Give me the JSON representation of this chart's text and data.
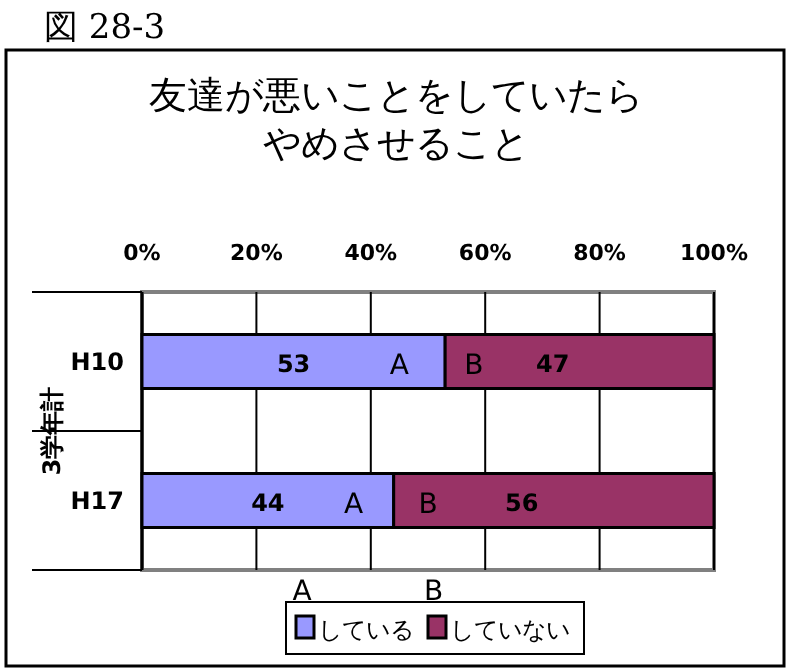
{
  "chart_data": {
    "type": "bar",
    "orientation": "horizontal",
    "stacked": true,
    "title": "友達が悪いことをしていたらやめさせること",
    "ylabel": "3学年計",
    "categories": [
      "H10",
      "H17"
    ],
    "series": [
      {
        "name": "している",
        "color": "#9999ff",
        "values": [
          53,
          44
        ]
      },
      {
        "name": "していない",
        "color": "#993366",
        "values": [
          47,
          56
        ]
      }
    ],
    "xlim": [
      0,
      100
    ],
    "xticks": [
      {
        "value": 0,
        "label": "0%"
      },
      {
        "value": 20,
        "label": "20%"
      },
      {
        "value": 40,
        "label": "40%"
      },
      {
        "value": 60,
        "label": "60%"
      },
      {
        "value": 80,
        "label": "80%"
      },
      {
        "value": 100,
        "label": "100%"
      }
    ],
    "grid": "x",
    "legend": "bottom",
    "data_labels": true,
    "annotations": [
      "図 28-3",
      "A",
      "B",
      "A",
      "B",
      "A",
      "B"
    ]
  }
}
